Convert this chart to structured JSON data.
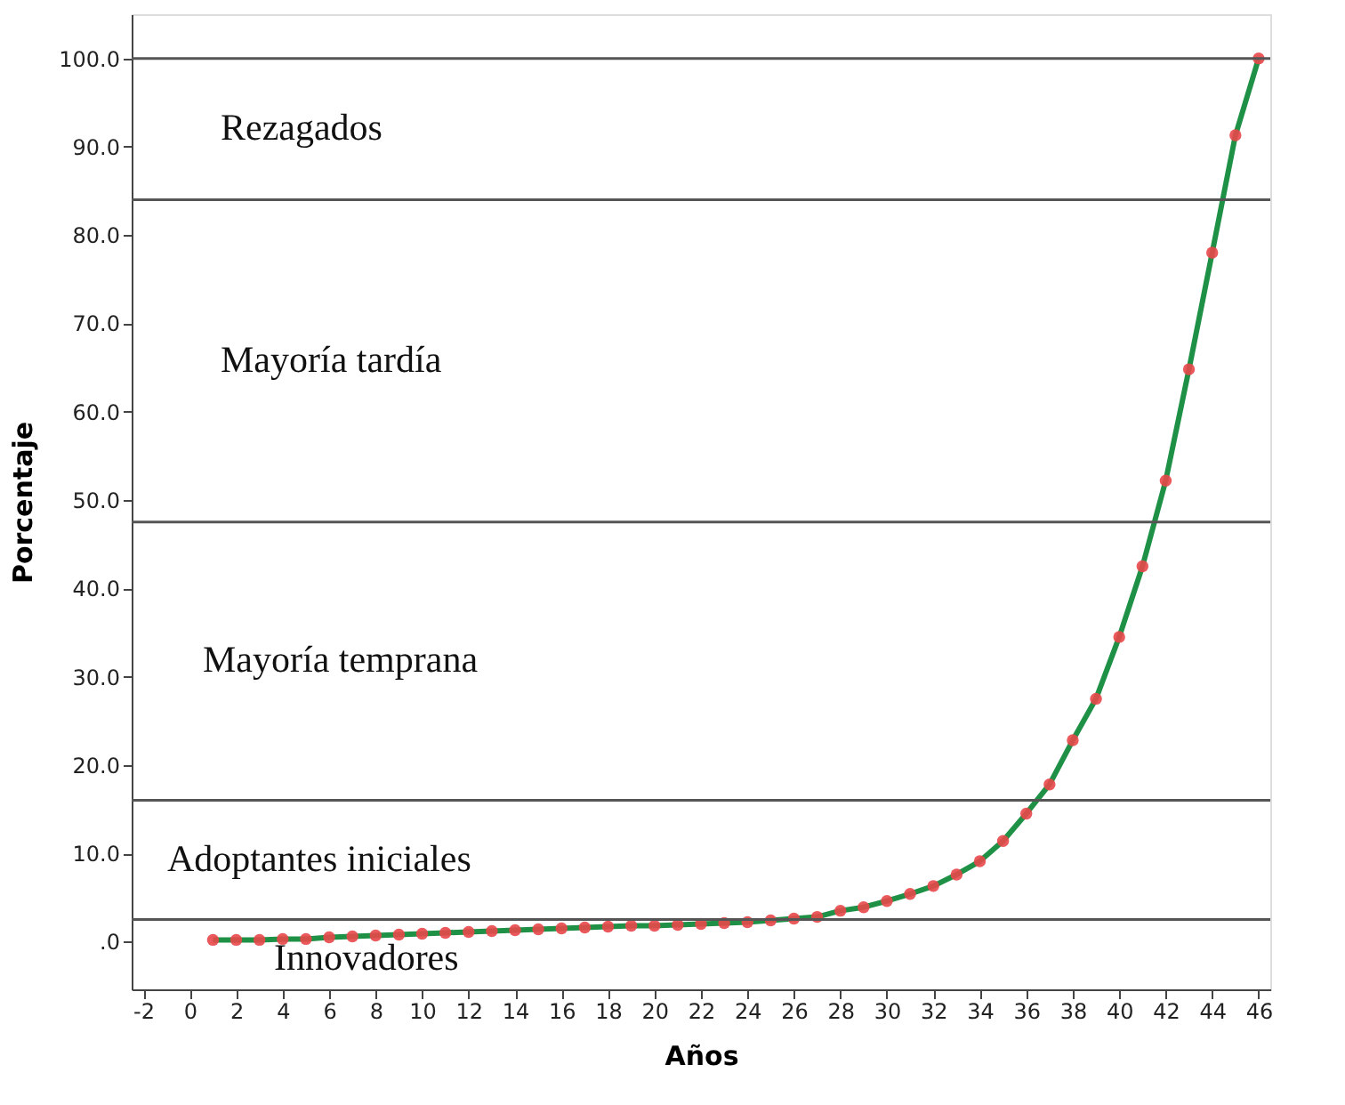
{
  "chart_data": {
    "type": "line",
    "xlabel": "Años",
    "ylabel": "Porcentaje",
    "x": [
      1,
      2,
      3,
      4,
      5,
      6,
      7,
      8,
      9,
      10,
      11,
      12,
      13,
      14,
      15,
      16,
      17,
      18,
      19,
      20,
      21,
      22,
      23,
      24,
      25,
      26,
      27,
      28,
      29,
      30,
      31,
      32,
      33,
      34,
      35,
      36,
      37,
      38,
      39,
      40,
      41,
      42,
      43,
      44,
      45,
      46
    ],
    "series": [
      {
        "type": "line",
        "color": "#1e9146",
        "marker": "none",
        "values": [
          0.2,
          0.2,
          0.2,
          0.3,
          0.3,
          0.5,
          0.6,
          0.7,
          0.8,
          0.9,
          1.0,
          1.1,
          1.2,
          1.3,
          1.4,
          1.5,
          1.6,
          1.7,
          1.8,
          1.8,
          1.9,
          2.0,
          2.1,
          2.2,
          2.4,
          2.6,
          2.8,
          3.5,
          3.9,
          4.6,
          5.4,
          6.3,
          7.6,
          9.1,
          11.4,
          14.5,
          17.8,
          22.8,
          27.5,
          34.5,
          42.5,
          52.2,
          64.8,
          78.0,
          91.3,
          100.0
        ]
      },
      {
        "type": "scatter",
        "color": "#e8474a",
        "marker": "circle",
        "values": [
          0.2,
          0.2,
          0.2,
          0.3,
          0.3,
          0.5,
          0.6,
          0.7,
          0.8,
          0.9,
          1.0,
          1.1,
          1.2,
          1.3,
          1.4,
          1.5,
          1.6,
          1.7,
          1.8,
          1.8,
          1.9,
          2.0,
          2.1,
          2.2,
          2.4,
          2.6,
          2.8,
          3.5,
          3.9,
          4.6,
          5.4,
          6.3,
          7.6,
          9.1,
          11.4,
          14.5,
          17.8,
          22.8,
          27.5,
          34.5,
          42.5,
          52.2,
          64.8,
          78.0,
          91.3,
          100.0
        ]
      }
    ],
    "xlim": [
      -2.5,
      46.5
    ],
    "xticks": [
      -2,
      0,
      2,
      4,
      6,
      8,
      10,
      12,
      14,
      16,
      18,
      20,
      22,
      24,
      26,
      28,
      30,
      32,
      34,
      36,
      38,
      40,
      42,
      44,
      46
    ],
    "ylim": [
      -5.4,
      105
    ],
    "yticks": [
      {
        "value": 0,
        "label": ".0"
      },
      {
        "value": 10,
        "label": "10.0"
      },
      {
        "value": 20,
        "label": "20.0"
      },
      {
        "value": 30,
        "label": "30.0"
      },
      {
        "value": 40,
        "label": "40.0"
      },
      {
        "value": 50,
        "label": "50.0"
      },
      {
        "value": 60,
        "label": "60.0"
      },
      {
        "value": 70,
        "label": "70.0"
      },
      {
        "value": 80,
        "label": "80.0"
      },
      {
        "value": 90,
        "label": "90.0"
      },
      {
        "value": 100,
        "label": "100.0"
      }
    ],
    "ref_lines": [
      {
        "axis": "y",
        "value": 2.5,
        "color": "#555555"
      },
      {
        "axis": "y",
        "value": 16,
        "color": "#555555"
      },
      {
        "axis": "y",
        "value": 47.5,
        "color": "#555555"
      },
      {
        "axis": "y",
        "value": 84,
        "color": "#555555"
      },
      {
        "axis": "y",
        "value": 100,
        "color": "#555555"
      }
    ],
    "annotations": [
      "Rezagados",
      "Mayoría tardía",
      "Mayoría temprana",
      "Adoptantes iniciales",
      "Innovadores"
    ],
    "grid": false
  }
}
